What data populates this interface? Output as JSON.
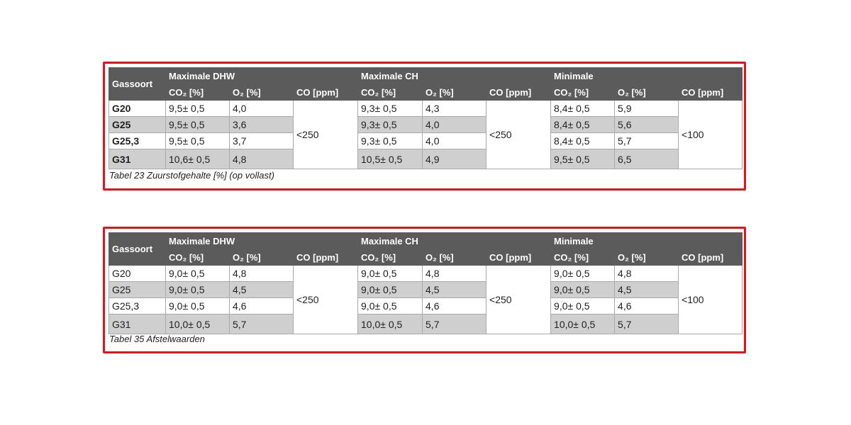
{
  "tables": [
    {
      "corner": "Gassoort",
      "groups": [
        "Maximale DHW",
        "Maximale CH",
        "Minimale"
      ],
      "subheaders": [
        "CO₂ [%]",
        "O₂ [%]",
        "CO [ppm]",
        "CO₂ [%]",
        "O₂ [%]",
        "CO [ppm]",
        "CO₂ [%]",
        "O₂ [%]",
        "CO [ppm]"
      ],
      "rows": [
        [
          "G20",
          "9,5± 0,5",
          "4,0",
          "9,3± 0,5",
          "4,3",
          "8,4± 0,5",
          "5,9"
        ],
        [
          "G25",
          "9,5± 0,5",
          "3,6",
          "9,3± 0,5",
          "4,0",
          "8,4± 0,5",
          "5,6"
        ],
        [
          "G25,3",
          "9,5± 0,5",
          "3,7",
          "9,3± 0,5",
          "4,0",
          "8,4± 0,5",
          "5,7"
        ],
        [
          "G31",
          "10,6± 0,5",
          "4,8",
          "10,5± 0,5",
          "4,9",
          "9,5± 0,5",
          "6,5"
        ]
      ],
      "co": [
        "<250",
        "<250",
        "<100"
      ],
      "caption": "Tabel 23  Zuurstofgehalte [%] (op vollast)"
    },
    {
      "corner": "Gassoort",
      "groups": [
        "Maximale DHW",
        "Maximale CH",
        "Minimale"
      ],
      "subheaders": [
        "CO₂ [%]",
        "O₂ [%]",
        "CO [ppm]",
        "CO₂ [%]",
        "O₂ [%]",
        "CO [ppm]",
        "CO₂ [%]",
        "O₂ [%]",
        "CO [ppm]"
      ],
      "rows": [
        [
          "G20",
          "9,0± 0,5",
          "4,8",
          "9,0± 0,5",
          "4,8",
          "9,0± 0,5",
          "4,8"
        ],
        [
          "G25",
          "9,0± 0,5",
          "4,5",
          "9,0± 0,5",
          "4,5",
          "9,0± 0,5",
          "4,5"
        ],
        [
          "G25,3",
          "9,0± 0,5",
          "4,6",
          "9,0± 0,5",
          "4,6",
          "9,0± 0,5",
          "4,6"
        ],
        [
          "G31",
          "10,0± 0,5",
          "5,7",
          "10,0± 0,5",
          "5,7",
          "10,0± 0,5",
          "5,7"
        ]
      ],
      "co": [
        "<250",
        "<250",
        "<100"
      ],
      "caption": "Tabel 35  Afstelwaarden"
    }
  ]
}
